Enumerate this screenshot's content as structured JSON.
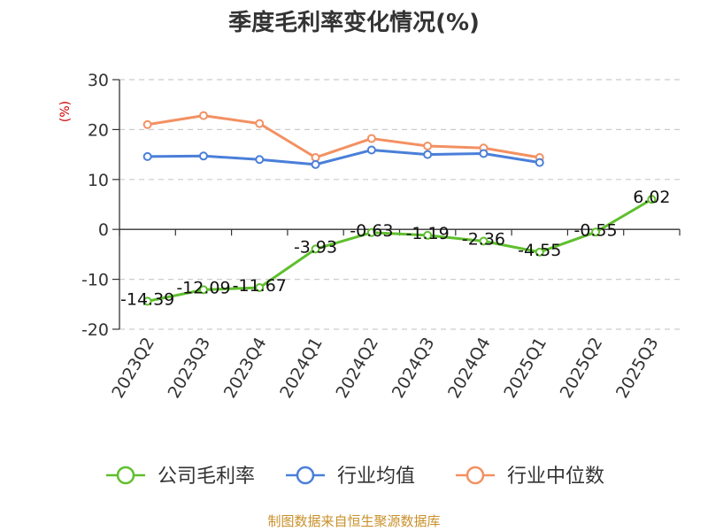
{
  "chart_data": {
    "type": "line",
    "title": "季度毛利率变化情况(%)",
    "ylabel": "(%)",
    "ylim": [
      -20,
      30
    ],
    "yticks": [
      -20,
      -10,
      0,
      10,
      20,
      30
    ],
    "grid": true,
    "legend_position": "bottom",
    "categories": [
      "2023Q2",
      "2023Q3",
      "2023Q4",
      "2024Q1",
      "2024Q2",
      "2024Q3",
      "2024Q4",
      "2025Q1",
      "2025Q2",
      "2025Q3"
    ],
    "series": [
      {
        "name": "公司毛利率",
        "color": "#5fbf2e",
        "values": [
          -14.39,
          -12.09,
          -11.67,
          -3.93,
          -0.63,
          -1.19,
          -2.36,
          -4.55,
          -0.55,
          6.02
        ],
        "labels": [
          "-14.39",
          "-12.09",
          "-11.67",
          "-3.93",
          "-0.63",
          "-1.19",
          "-2.36",
          "-4.55",
          "-0.55",
          "6.02"
        ]
      },
      {
        "name": "行业均值",
        "color": "#4a7fd9",
        "values": [
          14.6,
          14.7,
          14.0,
          13.0,
          15.9,
          15.0,
          15.2,
          13.4,
          null,
          null
        ]
      },
      {
        "name": "行业中位数",
        "color": "#f39062",
        "values": [
          21.0,
          22.8,
          21.2,
          14.4,
          18.2,
          16.7,
          16.3,
          14.4,
          null,
          null
        ]
      }
    ]
  },
  "footer": {
    "source": "制图数据来自恒生聚源数据库"
  }
}
